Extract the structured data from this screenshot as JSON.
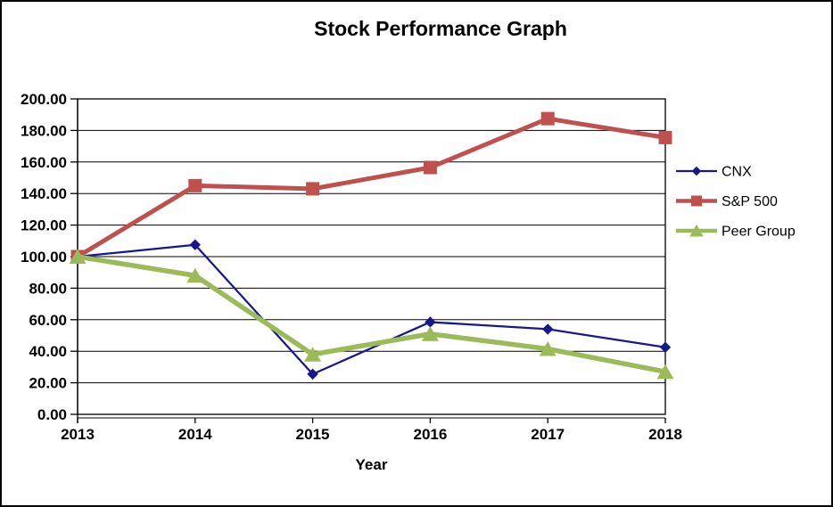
{
  "frame": {
    "background": "#FFFFFF",
    "border_color": "#000000",
    "axis_color": "#000000",
    "gridline_color": "#000000"
  },
  "chart_data": {
    "type": "line",
    "title": "Stock Performance Graph",
    "xlabel": "Year",
    "ylabel": "",
    "categories": [
      "2013",
      "2014",
      "2015",
      "2016",
      "2017",
      "2018"
    ],
    "y_ticks": [
      "0.00",
      "20.00",
      "40.00",
      "60.00",
      "80.00",
      "100.00",
      "120.00",
      "140.00",
      "160.00",
      "180.00",
      "200.00"
    ],
    "ylim": [
      0,
      200
    ],
    "grid": true,
    "legend_position": "right",
    "series": [
      {
        "name": "CNX",
        "color": "#17178F",
        "marker": "diamond",
        "line_width": 2.25,
        "values": [
          100,
          107.5,
          25.5,
          58.5,
          54,
          42.5
        ]
      },
      {
        "name": "S&P 500",
        "color": "#C0504D",
        "marker": "square",
        "line_width": 5,
        "values": [
          100,
          145,
          143,
          156.5,
          187.5,
          175.5
        ]
      },
      {
        "name": "Peer Group",
        "color": "#9BBB59",
        "marker": "triangle",
        "line_width": 5.5,
        "values": [
          100,
          88,
          38,
          51,
          41.5,
          27
        ]
      }
    ]
  }
}
